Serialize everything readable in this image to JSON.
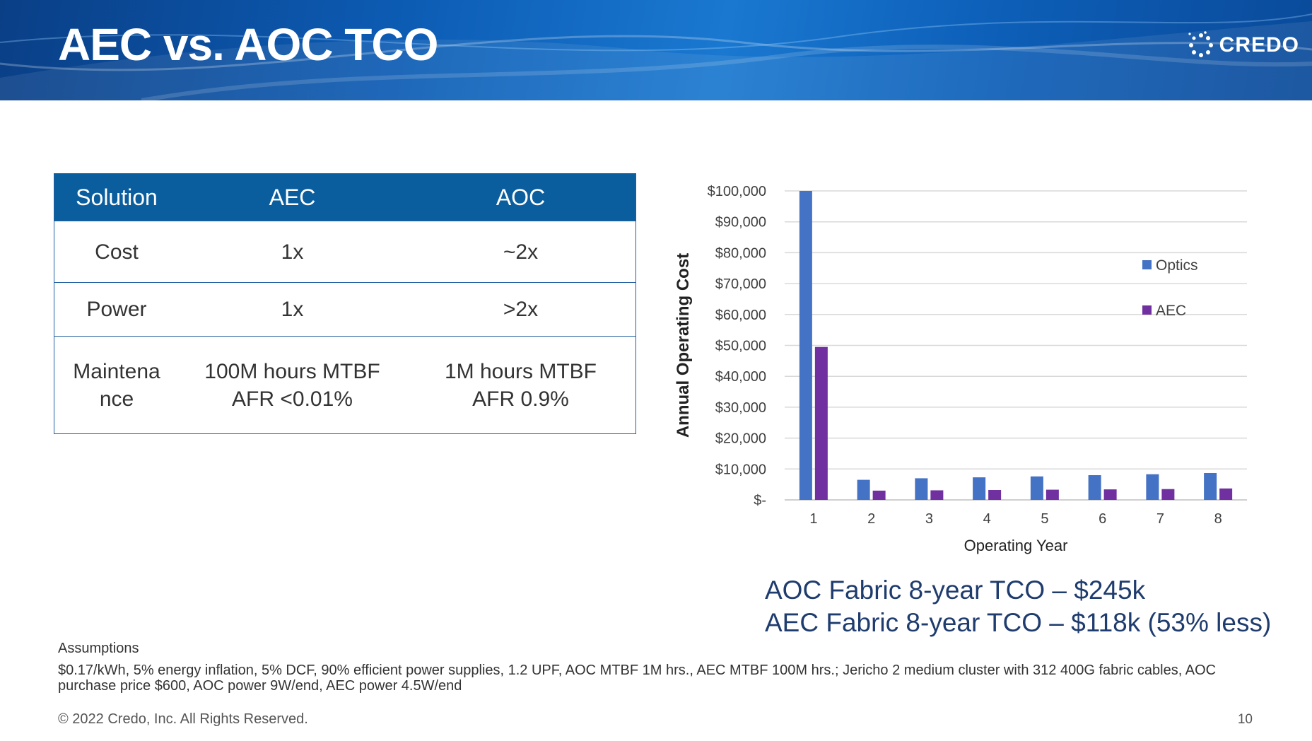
{
  "slide": {
    "title": "AEC vs. AOC TCO",
    "logo_text": "CREDO",
    "page_number": "10",
    "copyright": "© 2022 Credo, Inc. All Rights Reserved."
  },
  "table": {
    "headers": [
      "Solution",
      "AEC",
      "AOC"
    ],
    "rows": [
      {
        "label": "Cost",
        "aec": "1x",
        "aoc": "~2x"
      },
      {
        "label": "Power",
        "aec": "1x",
        "aoc": ">2x"
      },
      {
        "label_lines": [
          "Maintena",
          "nce"
        ],
        "aec_lines": [
          "100M hours MTBF",
          "AFR <0.01%"
        ],
        "aoc_lines": [
          "1M hours MTBF",
          "AFR 0.9%"
        ]
      }
    ]
  },
  "summary": {
    "line1": "AOC Fabric 8-year TCO – $245k",
    "line2": "AEC Fabric 8-year TCO – $118k (53% less)"
  },
  "assumptions": {
    "heading": "Assumptions",
    "text": "$0.17/kWh, 5% energy inflation, 5% DCF, 90% efficient power supplies, 1.2 UPF, AOC MTBF 1M hrs., AEC MTBF 100M hrs.; Jericho 2 medium cluster with 312 400G fabric cables, AOC purchase price $600, AOC power 9W/end, AEC power 4.5W/end"
  },
  "chart_data": {
    "type": "bar",
    "categories": [
      "1",
      "2",
      "3",
      "4",
      "5",
      "6",
      "7",
      "8"
    ],
    "series": [
      {
        "name": "Optics",
        "color": "#4472c4",
        "values": [
          100000,
          6500,
          7000,
          7300,
          7600,
          8000,
          8300,
          8700
        ]
      },
      {
        "name": "AEC",
        "color": "#7030a0",
        "values": [
          49500,
          3000,
          3100,
          3200,
          3300,
          3400,
          3500,
          3700
        ]
      }
    ],
    "xlabel": "Operating Year",
    "ylabel": "Annual Operating Cost",
    "ylim": [
      0,
      100000
    ],
    "yticks": [
      0,
      10000,
      20000,
      30000,
      40000,
      50000,
      60000,
      70000,
      80000,
      90000,
      100000
    ],
    "ytick_labels": [
      "$-",
      "$10,000",
      "$20,000",
      "$30,000",
      "$40,000",
      "$50,000",
      "$60,000",
      "$70,000",
      "$80,000",
      "$90,000",
      "$100,000"
    ],
    "grid": true,
    "legend": "right"
  }
}
